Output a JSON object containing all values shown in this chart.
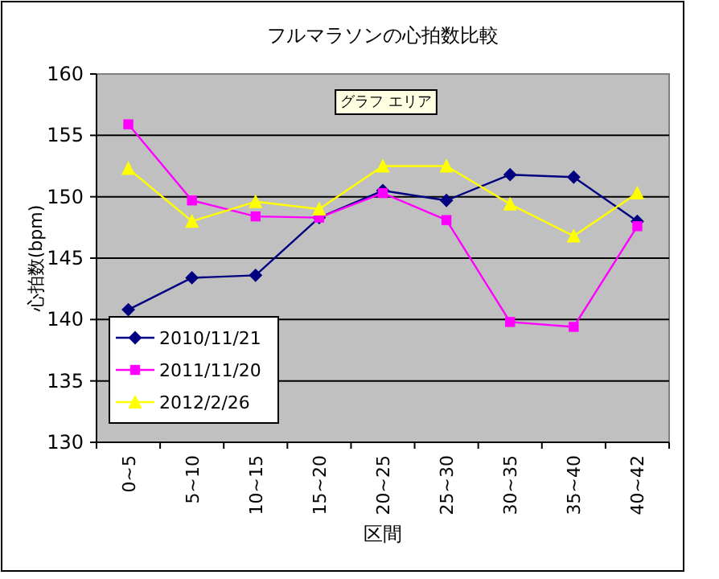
{
  "chart_data": {
    "type": "line",
    "title": "フルマラソンの心拍数比較",
    "xlabel": "区間",
    "ylabel": "心拍数(bpm)",
    "categories": [
      "0~5",
      "5~10",
      "10~15",
      "15~20",
      "20~25",
      "25~30",
      "30~35",
      "35~40",
      "40~42"
    ],
    "series": [
      {
        "name": "2010/11/21",
        "color": "#000080",
        "marker": "diamond",
        "values": [
          140.8,
          143.4,
          143.6,
          148.3,
          150.5,
          149.7,
          151.8,
          151.6,
          148.0
        ]
      },
      {
        "name": "2011/11/20",
        "color": "#ff00ff",
        "marker": "square",
        "values": [
          155.9,
          149.7,
          148.4,
          148.3,
          150.3,
          148.1,
          139.8,
          139.4,
          147.6
        ]
      },
      {
        "name": "2012/2/26",
        "color": "#ffff00",
        "marker": "triangle",
        "values": [
          152.3,
          148.0,
          149.6,
          149.0,
          152.5,
          152.5,
          149.4,
          146.8,
          150.3
        ]
      }
    ],
    "ylim": [
      130,
      160
    ],
    "yticks": [
      130,
      135,
      140,
      145,
      150,
      155,
      160
    ],
    "grid": "y",
    "legend": "bottom left",
    "line_style": "solid",
    "annotations": [
      "グラフ エリア"
    ]
  }
}
